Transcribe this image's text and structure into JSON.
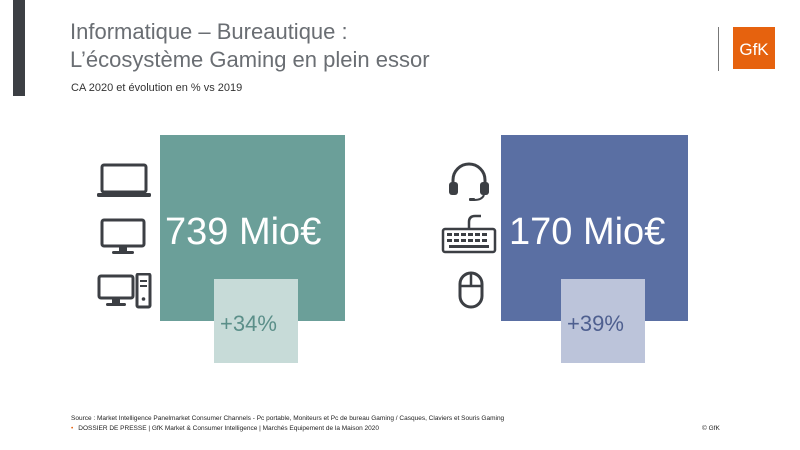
{
  "title_line1": "Informatique – Bureautique :",
  "title_line2": "L’écosystème Gaming en plein essor",
  "subtitle": "CA 2020 et évolution en % vs 2019",
  "logo_text": "GfK",
  "left_panel": {
    "value": "739 Mio€",
    "change": "+34%",
    "icons": [
      "laptop-icon",
      "monitor-icon",
      "desktop-pc-icon"
    ],
    "color": "#6b9f99",
    "light_color": "#c7dbd8"
  },
  "right_panel": {
    "value": "170 Mio€",
    "change": "+39%",
    "icons": [
      "headset-icon",
      "keyboard-icon",
      "mouse-icon"
    ],
    "color": "#5a6fa3",
    "light_color": "#bcc4da"
  },
  "source": "Source : Market Intelligence Panelmarket Consumer Channels - Pc portable, Moniteurs et Pc de bureau Gaming / Casques, Claviers et Souris Gaming",
  "footer": "DOSSIER DE PRESSE | GfK Market & Consumer Intelligence | Marchés Equipement de la Maison 2020",
  "copyright": "© GfK",
  "accent": "#e6620e"
}
